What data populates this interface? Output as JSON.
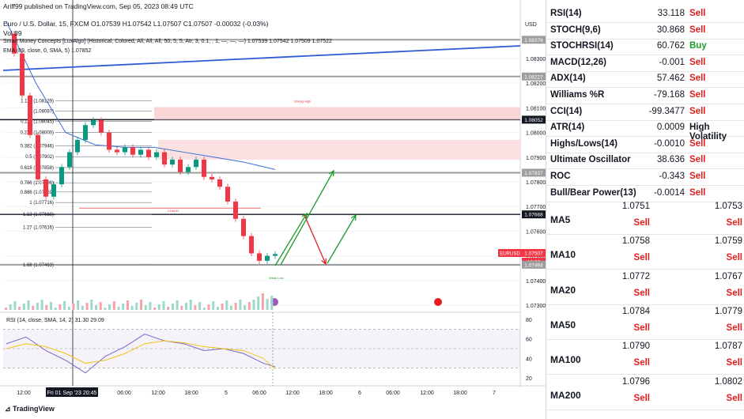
{
  "header": {
    "publisher": "Ariff99 published on TradingView.com, Sep 05, 2023 08:49 UTC",
    "symbol_line": "Euro / U.S. Dollar, 15, FXCM  O1.07539  H1.07542  L1.07507  C1.07507  -0.00032 (-0.03%)",
    "vol_line": "Vol  89",
    "smc_line": "Smart Money Concepts [LuxAlgo] (Historical, Colored, All, All, All, 50, 5, 5, Atr, 3, 0.1, , 1, —, —, —)  1.07539  1.07542  1.07509  1.07522",
    "ema_line": "EMA (89, close, 0, SMA, 5)  1.07852",
    "currency": "USD"
  },
  "chart_data": [
    {
      "type": "line",
      "title": "Euro / U.S. Dollar, 15, FXCM",
      "xlabel": "",
      "ylabel": "",
      "x_ticks": [
        "12:00",
        "Fri 01 Sep '23  20:45",
        "06:00",
        "12:00",
        "18:00",
        "5",
        "06:00",
        "12:00",
        "18:00",
        "6",
        "06:00",
        "12:00",
        "18:00",
        "7"
      ],
      "y_ticks": [
        1.083,
        1.082,
        1.081,
        1.08,
        1.079,
        1.078,
        1.077,
        1.076,
        1.075,
        1.074,
        1.073
      ],
      "ylim": [
        1.073,
        1.084
      ],
      "price_labels": [
        {
          "value": "1.08376",
          "style": "gray"
        },
        {
          "value": "1.08227",
          "style": "gray"
        },
        {
          "value": "1.08052",
          "style": "dark"
        },
        {
          "value": "1.07837",
          "style": "gray"
        },
        {
          "value": "1.07668",
          "style": "dark"
        },
        {
          "value": "EURUSD",
          "style": "red"
        },
        {
          "value": "1.07507",
          "style": "red"
        },
        {
          "value": "10:23",
          "style": "red"
        },
        {
          "value": "1.07464",
          "style": "gray"
        }
      ],
      "horizontal_levels": [
        1.08376,
        1.08227,
        1.08052,
        1.07837,
        1.07668,
        1.07464
      ],
      "fib_levels": [
        {
          "label": "1.113 (1.08129)",
          "value": 1.08129
        },
        {
          "label": "0 (1.08087)",
          "value": 1.08087
        },
        {
          "label": "0.113 (1.08045)",
          "value": 1.08045
        },
        {
          "label": "0.236 (1.08000)",
          "value": 1.08
        },
        {
          "label": "0.382 (1.07946)",
          "value": 1.07946
        },
        {
          "label": "0.5 (1.07902)",
          "value": 1.07902
        },
        {
          "label": "0.618 (1.07858)",
          "value": 1.07858
        },
        {
          "label": "0.786 (1.07796)",
          "value": 1.07796
        },
        {
          "label": "0.886 (1.07759)",
          "value": 1.07759
        },
        {
          "label": "1 (1.07716)",
          "value": 1.07716
        },
        {
          "label": "1.13 (1.07668)",
          "value": 1.07668
        },
        {
          "label": "1.27 (1.07616)",
          "value": 1.07616
        },
        {
          "label": "1.68 (1.07463)",
          "value": 1.07463
        }
      ],
      "annotations": [
        "Strong High",
        "Weak Low",
        "CHoCH",
        "BOS"
      ],
      "series": [
        {
          "name": "EURUSD",
          "x": [
            0,
            4,
            8,
            12,
            16,
            20,
            24,
            28,
            32,
            36,
            40,
            44,
            48,
            52,
            56,
            60,
            64,
            68,
            72,
            76,
            80,
            84,
            88,
            92,
            96,
            100,
            104,
            108,
            112,
            116,
            120,
            124,
            128,
            132,
            136
          ],
          "values": [
            1.084,
            1.0832,
            1.0815,
            1.0799,
            1.0781,
            1.0774,
            1.0779,
            1.0786,
            1.0792,
            1.0797,
            1.0803,
            1.0805,
            1.08,
            1.0793,
            1.0792,
            1.0794,
            1.0791,
            1.0793,
            1.079,
            1.0792,
            1.0787,
            1.0789,
            1.0784,
            1.0786,
            1.0789,
            1.0782,
            1.0781,
            1.0778,
            1.0772,
            1.0765,
            1.0758,
            1.0751,
            1.0748,
            1.075,
            1.07507
          ]
        },
        {
          "name": "EMA 89",
          "x": [
            0,
            15,
            30,
            45,
            60,
            75,
            90,
            105,
            120,
            136
          ],
          "values": [
            1.0845,
            1.082,
            1.08,
            1.0795,
            1.0794,
            1.0794,
            1.0792,
            1.079,
            1.0788,
            1.0785
          ]
        }
      ]
    },
    {
      "type": "line",
      "title": "RSI (14, close, SMA, 14, 2)  31.30  29.09",
      "y_ticks": [
        80,
        60,
        40,
        20
      ],
      "ylim": [
        15,
        85
      ],
      "series": [
        {
          "name": "RSI",
          "x": [
            0,
            10,
            20,
            30,
            40,
            50,
            60,
            70,
            80,
            90,
            100,
            110,
            120,
            130,
            136
          ],
          "values": [
            55,
            62,
            48,
            38,
            25,
            42,
            52,
            65,
            58,
            55,
            48,
            50,
            45,
            35,
            31.3
          ]
        },
        {
          "name": "RSI-based MA",
          "x": [
            0,
            10,
            20,
            30,
            40,
            50,
            60,
            70,
            80,
            90,
            100,
            110,
            120,
            130,
            136
          ],
          "values": [
            50,
            55,
            52,
            45,
            35,
            38,
            45,
            55,
            58,
            56,
            52,
            50,
            48,
            40,
            29.09
          ]
        }
      ]
    }
  ],
  "indicators": [
    {
      "name": "RSI(14)",
      "value": "33.118",
      "action": "Sell"
    },
    {
      "name": "STOCH(9,6)",
      "value": "30.868",
      "action": "Sell"
    },
    {
      "name": "STOCHRSI(14)",
      "value": "60.762",
      "action": "Buy"
    },
    {
      "name": "MACD(12,26)",
      "value": "-0.001",
      "action": "Sell"
    },
    {
      "name": "ADX(14)",
      "value": "57.462",
      "action": "Sell"
    },
    {
      "name": "Williams %R",
      "value": "-79.168",
      "action": "Sell"
    },
    {
      "name": "CCI(14)",
      "value": "-99.3477",
      "action": "Sell"
    },
    {
      "name": "ATR(14)",
      "value": "0.0009",
      "action": "High Volatility"
    },
    {
      "name": "Highs/Lows(14)",
      "value": "-0.0010",
      "action": "Sell"
    },
    {
      "name": "Ultimate Oscillator",
      "value": "38.636",
      "action": "Sell"
    },
    {
      "name": "ROC",
      "value": "-0.343",
      "action": "Sell"
    },
    {
      "name": "Bull/Bear Power(13)",
      "value": "-0.0014",
      "action": "Sell"
    }
  ],
  "moving_averages": [
    {
      "name": "MA5",
      "simple": "1.0751",
      "simple_action": "Sell",
      "exp": "1.0753",
      "exp_action": "Sell"
    },
    {
      "name": "MA10",
      "simple": "1.0758",
      "simple_action": "Sell",
      "exp": "1.0759",
      "exp_action": "Sell"
    },
    {
      "name": "MA20",
      "simple": "1.0772",
      "simple_action": "Sell",
      "exp": "1.0767",
      "exp_action": "Sell"
    },
    {
      "name": "MA50",
      "simple": "1.0784",
      "simple_action": "Sell",
      "exp": "1.0779",
      "exp_action": "Sell"
    },
    {
      "name": "MA100",
      "simple": "1.0790",
      "simple_action": "Sell",
      "exp": "1.0787",
      "exp_action": "Sell"
    },
    {
      "name": "MA200",
      "simple": "1.0796",
      "simple_action": "Sell",
      "exp": "1.0802",
      "exp_action": "Sell"
    }
  ],
  "footer": {
    "brand": "TradingView"
  },
  "colors": {
    "sell": "#e41e1e",
    "buy": "#1a9d2a",
    "ema": "#3b6fd6",
    "rsi": "#7b68c9",
    "rsi_ma": "#f0c419"
  }
}
